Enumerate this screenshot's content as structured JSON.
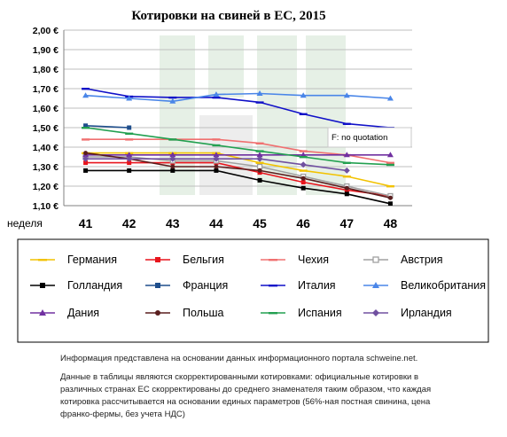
{
  "chart_data": {
    "type": "line",
    "title": "Котировки на свиней в ЕС, 2015",
    "xlabel": "неделя",
    "ylabel": "",
    "x": [
      41,
      42,
      43,
      44,
      45,
      46,
      47,
      48
    ],
    "x_tick_labels": [
      "41",
      "42",
      "43",
      "44",
      "45",
      "46",
      "47",
      "48"
    ],
    "ylim": [
      1.1,
      2.0
    ],
    "y_tick_labels": [
      "2,00 €",
      "1,90 €",
      "1,80 €",
      "1,70 €",
      "1,60 €",
      "1,50 €",
      "1,40 €",
      "1,30 €",
      "1,20 €",
      "1,10 €"
    ],
    "grid": true,
    "legend_position": "bottom",
    "annotation": "F: no quotation",
    "series": [
      {
        "name": "Германия",
        "color": "#f2c200",
        "marker": "dash",
        "values": [
          1.37,
          1.37,
          1.37,
          1.37,
          1.32,
          1.28,
          1.25,
          1.2
        ]
      },
      {
        "name": "Бельгия",
        "color": "#e8141c",
        "marker": "square",
        "values": [
          1.32,
          1.32,
          1.32,
          1.32,
          1.27,
          1.22,
          1.18,
          1.15
        ]
      },
      {
        "name": "Чехия",
        "color": "#f07070",
        "marker": "dash",
        "values": [
          1.44,
          1.44,
          1.44,
          1.44,
          1.42,
          1.38,
          1.36,
          1.32
        ]
      },
      {
        "name": "Австрия",
        "color": "#a0a0a0",
        "marker": "square-open",
        "values": [
          1.35,
          1.35,
          1.33,
          1.33,
          1.3,
          1.25,
          1.2,
          1.15
        ]
      },
      {
        "name": "Голландия",
        "color": "#000000",
        "marker": "square",
        "values": [
          1.28,
          1.28,
          1.28,
          1.28,
          1.23,
          1.19,
          1.16,
          1.11
        ]
      },
      {
        "name": "Франция",
        "color": "#1f4e8c",
        "marker": "square",
        "values": [
          1.51,
          1.5,
          null,
          null,
          null,
          null,
          null,
          null
        ]
      },
      {
        "name": "Италия",
        "color": "#1010c8",
        "marker": "dash",
        "values": [
          1.7,
          1.66,
          1.655,
          1.655,
          1.63,
          1.57,
          1.52,
          1.5
        ]
      },
      {
        "name": "Великобритания",
        "color": "#4a86e8",
        "marker": "triangle",
        "values": [
          1.665,
          1.65,
          1.635,
          1.67,
          1.675,
          1.665,
          1.665,
          1.65
        ]
      },
      {
        "name": "Дания",
        "color": "#7030a0",
        "marker": "triangle",
        "values": [
          1.36,
          1.36,
          1.36,
          1.36,
          1.36,
          1.36,
          1.36,
          1.36
        ]
      },
      {
        "name": "Польша",
        "color": "#5a1e1e",
        "marker": "circle",
        "values": [
          1.37,
          1.34,
          1.3,
          1.3,
          1.28,
          1.24,
          1.19,
          1.14
        ]
      },
      {
        "name": "Испания",
        "color": "#22a050",
        "marker": "dash",
        "values": [
          1.5,
          1.47,
          1.44,
          1.41,
          1.38,
          1.35,
          1.32,
          1.31
        ]
      },
      {
        "name": "Ирландия",
        "color": "#7050a0",
        "marker": "diamond",
        "values": [
          1.34,
          1.34,
          1.34,
          1.34,
          1.34,
          1.31,
          1.28,
          null
        ]
      }
    ]
  },
  "notes": {
    "source": "Информация представлена на основании данных информационного портала schweine.net.",
    "disclaimer": "Данные в таблицы являются скорректированными котировками: официальные котировки в различных странах ЕС скорректированы до среднего знаменателя таким образом, что каждая котировка рассчитывается на основании единых параметров (56%-ная постная свинина, цена франко-фермы, без учета НДС)"
  }
}
